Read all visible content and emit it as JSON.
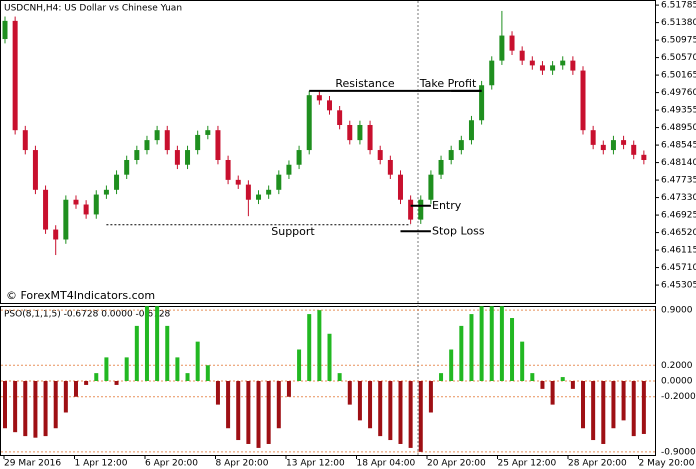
{
  "chart_data": [
    {
      "type": "candlestick",
      "title": "USDCNH,H4: US Dollar vs Chinese Yuan",
      "watermark": "© ForexMT4Indicators.com",
      "up_color": "#1f8f1f",
      "down_color": "#c8102e",
      "open": [
        6.51,
        6.5142,
        6.4889,
        6.4843,
        6.4751,
        6.4659,
        6.4636,
        6.4728,
        6.4717,
        6.4694,
        6.474,
        6.4751,
        6.4786,
        6.482,
        6.4843,
        6.4866,
        6.4889,
        6.4843,
        6.4809,
        6.4843,
        6.4878,
        6.4889,
        6.482,
        6.4774,
        6.4763,
        6.4728,
        6.474,
        6.4751,
        6.4786,
        6.4809,
        6.4843,
        6.497,
        6.4958,
        6.4935,
        6.4901,
        6.4866,
        6.4901,
        6.4843,
        6.482,
        6.4786,
        6.4728,
        6.4682,
        6.4728,
        6.4786,
        6.482,
        6.4843,
        6.4866,
        6.4912,
        6.4993,
        6.505,
        6.5108,
        6.5073,
        6.505,
        6.5039,
        6.5027,
        6.5039,
        6.505,
        6.5027,
        6.4889,
        6.4855,
        6.4843,
        6.4866,
        6.4855,
        6.4832
      ],
      "high": [
        6.5152,
        6.5152,
        6.4899,
        6.4853,
        6.4761,
        6.4669,
        6.4738,
        6.4738,
        6.4727,
        6.475,
        6.4761,
        6.4796,
        6.483,
        6.4853,
        6.4876,
        6.4899,
        6.4899,
        6.4853,
        6.4853,
        6.4888,
        6.4899,
        6.4899,
        6.483,
        6.4784,
        6.4773,
        6.475,
        6.4761,
        6.4796,
        6.4819,
        6.4853,
        6.498,
        6.498,
        6.4968,
        6.4945,
        6.4911,
        6.4911,
        6.4911,
        6.4853,
        6.483,
        6.4796,
        6.4738,
        6.4738,
        6.4796,
        6.483,
        6.4853,
        6.4876,
        6.4922,
        6.5003,
        6.506,
        6.5165,
        6.5118,
        6.5083,
        6.506,
        6.5049,
        6.5049,
        6.506,
        6.506,
        6.5037,
        6.4899,
        6.4865,
        6.4876,
        6.4876,
        6.4865,
        6.4842
      ],
      "low": [
        6.509,
        6.4879,
        6.4833,
        6.4741,
        6.4649,
        6.46,
        6.4626,
        6.4707,
        6.4684,
        6.4684,
        6.473,
        6.4741,
        6.4776,
        6.481,
        6.4833,
        6.4856,
        6.4833,
        6.4799,
        6.4799,
        6.4833,
        6.4868,
        6.481,
        6.4764,
        6.4753,
        6.469,
        6.4718,
        6.473,
        6.4741,
        6.4776,
        6.4799,
        6.4833,
        6.4948,
        6.4925,
        6.4891,
        6.4856,
        6.4856,
        6.4833,
        6.481,
        6.4776,
        6.4718,
        6.4672,
        6.4672,
        6.4718,
        6.4776,
        6.481,
        6.4833,
        6.4856,
        6.4902,
        6.4983,
        6.504,
        6.5063,
        6.504,
        6.5029,
        6.5017,
        6.5017,
        6.5029,
        6.5017,
        6.4879,
        6.4845,
        6.4833,
        6.4833,
        6.4845,
        6.4822,
        6.481
      ],
      "close": [
        6.5142,
        6.4889,
        6.4843,
        6.4751,
        6.4659,
        6.4636,
        6.4728,
        6.4717,
        6.4694,
        6.474,
        6.4751,
        6.4786,
        6.482,
        6.4843,
        6.4866,
        6.4889,
        6.4843,
        6.4809,
        6.4843,
        6.4878,
        6.4889,
        6.482,
        6.4774,
        6.4763,
        6.4728,
        6.474,
        6.4751,
        6.4786,
        6.4809,
        6.4843,
        6.497,
        6.4958,
        6.4935,
        6.4901,
        6.4866,
        6.4901,
        6.4843,
        6.482,
        6.4786,
        6.4728,
        6.4682,
        6.4728,
        6.4786,
        6.482,
        6.4843,
        6.4866,
        6.4912,
        6.4993,
        6.505,
        6.5108,
        6.5073,
        6.505,
        6.5039,
        6.5027,
        6.5039,
        6.505,
        6.5027,
        6.4889,
        6.4855,
        6.4843,
        6.4866,
        6.4855,
        6.4832,
        6.482
      ],
      "ylim": [
        6.4489,
        6.5188
      ],
      "yticks": [
        6.45305,
        {
          "value": 6.4571,
          "label": "6.45710"
        },
        6.46115,
        {
          "value": 6.4652,
          "label": "6.46520"
        },
        6.46925,
        {
          "value": 6.4733,
          "label": "6.47330"
        },
        6.47735,
        {
          "value": 6.4814,
          "label": "6.48140"
        },
        6.48545,
        {
          "value": 6.4895,
          "label": "6.48950"
        },
        6.49355,
        {
          "value": 6.4976,
          "label": "6.49760"
        },
        6.50165,
        {
          "value": 6.5057,
          "label": "6.50570"
        },
        6.50975,
        {
          "value": 6.5138,
          "label": "6.51380"
        },
        6.51785
      ],
      "annotations": [
        {
          "text": "Resistance",
          "value": 6.498
        },
        {
          "text": "Take Profit",
          "value": 6.498
        },
        {
          "text": "Support",
          "value": 6.467
        },
        {
          "text": "Entry",
          "value": 6.4714
        },
        {
          "text": "Stop Loss",
          "value": 6.4655
        }
      ],
      "x_labels": [
        "29 Mar 2016",
        "1 Apr 12:00",
        "6 Apr 20:00",
        "8 Apr 20:00",
        "13 Apr 12:00",
        "18 Apr 04:00",
        "20 Apr 20:00",
        "25 Apr 12:00",
        "28 Apr 20:00",
        "2 May 20:00"
      ]
    },
    {
      "type": "bar",
      "title": "PSO(8,1,1,5) -0.6728 0.0000 -0.6728",
      "up_color": "#22b822",
      "down_color": "#9e0f14",
      "level_color": "#e8905a",
      "values": [
        -0.6,
        -0.65,
        -0.7,
        -0.72,
        -0.7,
        -0.6,
        -0.4,
        -0.2,
        -0.05,
        0.1,
        0.3,
        -0.05,
        0.3,
        0.7,
        0.95,
        0.95,
        0.7,
        0.3,
        0.1,
        0.5,
        0.2,
        -0.3,
        -0.6,
        -0.75,
        -0.8,
        -0.85,
        -0.8,
        -0.6,
        -0.2,
        0.4,
        0.85,
        0.9,
        0.6,
        0.1,
        -0.3,
        -0.5,
        -0.6,
        -0.7,
        -0.75,
        -0.8,
        -0.85,
        -0.9,
        -0.4,
        0.1,
        0.4,
        0.7,
        0.85,
        0.95,
        0.95,
        0.95,
        0.8,
        0.5,
        0.1,
        -0.1,
        -0.3,
        0.05,
        -0.1,
        -0.6,
        -0.75,
        -0.8,
        -0.6,
        -0.5,
        -0.7,
        -0.6728
      ],
      "ylim": [
        -0.94,
        0.94
      ],
      "yticks": [
        {
          "value": 0.9,
          "label": "0.9000"
        },
        {
          "value": 0.2,
          "label": "0.2000"
        },
        {
          "value": 0,
          "label": "0.0000"
        },
        {
          "value": -0.2,
          "label": "-0.2000"
        },
        {
          "value": -0.9,
          "label": "-0.9000"
        }
      ]
    }
  ]
}
